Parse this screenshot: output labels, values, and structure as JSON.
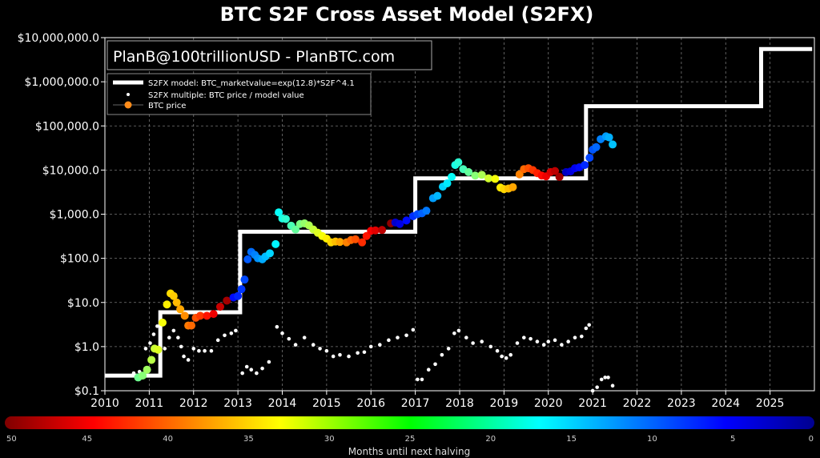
{
  "chart_data": {
    "type": "scatter",
    "title": "BTC S2F Cross Asset Model (S2FX)",
    "annotation": "PlanB@100trillionUSD  -  PlanBTC.com",
    "y_scale": "log",
    "ylim": [
      0.1,
      10000000
    ],
    "xlim": [
      2010,
      2026
    ],
    "grid": true,
    "legend_position": "top-left",
    "y_tick_labels": [
      "$0.1",
      "$1.0",
      "$10.0",
      "$100.0",
      "$1,000.0",
      "$10,000.0",
      "$100,000.0",
      "$1,000,000.0",
      "$10,000,000.0"
    ],
    "x_tick_labels": [
      "2010",
      "2011",
      "2012",
      "2013",
      "2014",
      "2015",
      "2016",
      "2017",
      "2018",
      "2019",
      "2020",
      "2021",
      "2022",
      "2023",
      "2024",
      "2025"
    ],
    "legend": [
      "S2FX model: BTC_marketvalue=exp(12.8)*S2F^4.1",
      "S2FX multiple: BTC price / model value",
      "BTC price"
    ],
    "colorbar": {
      "label": "Months until next halving",
      "ticks": [
        "50",
        "45",
        "40",
        "35",
        "30",
        "25",
        "20",
        "15",
        "10",
        "5",
        "0"
      ]
    },
    "series": [
      {
        "name": "S2FX model: BTC_marketvalue=exp(12.8)*S2F^4.1",
        "style": "step",
        "color": "#ffffff",
        "points": [
          [
            2010.0,
            0.22
          ],
          [
            2011.25,
            0.22
          ],
          [
            2011.25,
            6.0
          ],
          [
            2013.05,
            6.0
          ],
          [
            2013.05,
            400
          ],
          [
            2017.0,
            400
          ],
          [
            2017.0,
            6500
          ],
          [
            2020.85,
            6500
          ],
          [
            2020.85,
            280000
          ],
          [
            2024.8,
            280000
          ],
          [
            2024.8,
            5500000
          ],
          [
            2025.95,
            5500000
          ]
        ]
      },
      {
        "name": "BTC price",
        "style": "points",
        "points": [
          [
            2010.75,
            0.2
          ],
          [
            2010.85,
            0.22
          ],
          [
            2010.95,
            0.3
          ],
          [
            2011.05,
            0.5
          ],
          [
            2011.12,
            0.9
          ],
          [
            2011.2,
            0.85
          ],
          [
            2011.3,
            3.5
          ],
          [
            2011.4,
            9
          ],
          [
            2011.48,
            16
          ],
          [
            2011.55,
            14
          ],
          [
            2011.62,
            10
          ],
          [
            2011.7,
            7
          ],
          [
            2011.8,
            5
          ],
          [
            2011.88,
            3
          ],
          [
            2011.95,
            3
          ],
          [
            2012.05,
            4.5
          ],
          [
            2012.15,
            5
          ],
          [
            2012.3,
            5
          ],
          [
            2012.45,
            5.5
          ],
          [
            2012.6,
            8
          ],
          [
            2012.75,
            11
          ],
          [
            2012.9,
            13
          ],
          [
            2013.0,
            14
          ],
          [
            2013.08,
            20
          ],
          [
            2013.15,
            33
          ],
          [
            2013.22,
            95
          ],
          [
            2013.3,
            140
          ],
          [
            2013.38,
            120
          ],
          [
            2013.45,
            100
          ],
          [
            2013.55,
            95
          ],
          [
            2013.62,
            110
          ],
          [
            2013.72,
            130
          ],
          [
            2013.85,
            210
          ],
          [
            2013.92,
            1100
          ],
          [
            2014.0,
            800
          ],
          [
            2014.08,
            780
          ],
          [
            2014.2,
            550
          ],
          [
            2014.3,
            450
          ],
          [
            2014.4,
            600
          ],
          [
            2014.5,
            620
          ],
          [
            2014.6,
            560
          ],
          [
            2014.7,
            450
          ],
          [
            2014.8,
            380
          ],
          [
            2014.9,
            320
          ],
          [
            2015.0,
            280
          ],
          [
            2015.1,
            230
          ],
          [
            2015.2,
            240
          ],
          [
            2015.3,
            235
          ],
          [
            2015.45,
            230
          ],
          [
            2015.55,
            260
          ],
          [
            2015.65,
            270
          ],
          [
            2015.8,
            230
          ],
          [
            2015.9,
            320
          ],
          [
            2016.0,
            420
          ],
          [
            2016.1,
            430
          ],
          [
            2016.25,
            440
          ],
          [
            2016.45,
            620
          ],
          [
            2016.55,
            650
          ],
          [
            2016.65,
            600
          ],
          [
            2016.8,
            720
          ],
          [
            2016.95,
            900
          ],
          [
            2017.05,
            1000
          ],
          [
            2017.15,
            1050
          ],
          [
            2017.25,
            1200
          ],
          [
            2017.4,
            2300
          ],
          [
            2017.5,
            2600
          ],
          [
            2017.62,
            4200
          ],
          [
            2017.72,
            5000
          ],
          [
            2017.82,
            7000
          ],
          [
            2017.9,
            13000
          ],
          [
            2017.97,
            15000
          ],
          [
            2018.08,
            10500
          ],
          [
            2018.2,
            9000
          ],
          [
            2018.35,
            7500
          ],
          [
            2018.5,
            7800
          ],
          [
            2018.65,
            6500
          ],
          [
            2018.8,
            6300
          ],
          [
            2018.92,
            4000
          ],
          [
            2019.0,
            3700
          ],
          [
            2019.1,
            3800
          ],
          [
            2019.2,
            4100
          ],
          [
            2019.35,
            8000
          ],
          [
            2019.45,
            10500
          ],
          [
            2019.55,
            11000
          ],
          [
            2019.65,
            10000
          ],
          [
            2019.75,
            8500
          ],
          [
            2019.85,
            7500
          ],
          [
            2019.95,
            7200
          ],
          [
            2020.05,
            9000
          ],
          [
            2020.15,
            9500
          ],
          [
            2020.25,
            7000
          ],
          [
            2020.4,
            9000
          ],
          [
            2020.5,
            9300
          ],
          [
            2020.6,
            11000
          ],
          [
            2020.7,
            11500
          ],
          [
            2020.82,
            13000
          ],
          [
            2020.93,
            19000
          ],
          [
            2021.0,
            29000
          ],
          [
            2021.08,
            33000
          ],
          [
            2021.18,
            50000
          ],
          [
            2021.3,
            58000
          ],
          [
            2021.37,
            55000
          ],
          [
            2021.45,
            38000
          ]
        ]
      },
      {
        "name": "S2FX multiple: BTC price / model value",
        "style": "points",
        "color": "#ffffff",
        "points": [
          [
            2010.65,
            0.25
          ],
          [
            2010.78,
            0.27
          ],
          [
            2010.92,
            0.9
          ],
          [
            2011.02,
            1.2
          ],
          [
            2011.1,
            1.9
          ],
          [
            2011.18,
            2.9
          ],
          [
            2011.35,
            0.9
          ],
          [
            2011.45,
            1.6
          ],
          [
            2011.55,
            2.3
          ],
          [
            2011.65,
            1.6
          ],
          [
            2011.72,
            1.0
          ],
          [
            2011.78,
            0.6
          ],
          [
            2011.88,
            0.5
          ],
          [
            2012.0,
            0.9
          ],
          [
            2012.12,
            0.8
          ],
          [
            2012.25,
            0.8
          ],
          [
            2012.4,
            0.8
          ],
          [
            2012.55,
            1.4
          ],
          [
            2012.7,
            1.8
          ],
          [
            2012.85,
            2.0
          ],
          [
            2012.95,
            2.3
          ],
          [
            2013.1,
            0.25
          ],
          [
            2013.2,
            0.35
          ],
          [
            2013.3,
            0.3
          ],
          [
            2013.42,
            0.25
          ],
          [
            2013.55,
            0.32
          ],
          [
            2013.7,
            0.45
          ],
          [
            2013.88,
            2.8
          ],
          [
            2014.0,
            2.0
          ],
          [
            2014.15,
            1.5
          ],
          [
            2014.3,
            1.1
          ],
          [
            2014.5,
            1.6
          ],
          [
            2014.7,
            1.1
          ],
          [
            2014.85,
            0.9
          ],
          [
            2015.0,
            0.8
          ],
          [
            2015.15,
            0.6
          ],
          [
            2015.3,
            0.65
          ],
          [
            2015.5,
            0.6
          ],
          [
            2015.7,
            0.72
          ],
          [
            2015.85,
            0.75
          ],
          [
            2016.0,
            1.0
          ],
          [
            2016.2,
            1.1
          ],
          [
            2016.4,
            1.4
          ],
          [
            2016.6,
            1.6
          ],
          [
            2016.8,
            1.8
          ],
          [
            2016.95,
            2.4
          ],
          [
            2017.05,
            0.18
          ],
          [
            2017.15,
            0.18
          ],
          [
            2017.3,
            0.3
          ],
          [
            2017.45,
            0.4
          ],
          [
            2017.6,
            0.65
          ],
          [
            2017.75,
            0.9
          ],
          [
            2017.88,
            2.0
          ],
          [
            2017.98,
            2.3
          ],
          [
            2018.15,
            1.6
          ],
          [
            2018.3,
            1.2
          ],
          [
            2018.5,
            1.3
          ],
          [
            2018.7,
            1.0
          ],
          [
            2018.85,
            0.8
          ],
          [
            2018.95,
            0.6
          ],
          [
            2019.05,
            0.55
          ],
          [
            2019.15,
            0.65
          ],
          [
            2019.3,
            1.2
          ],
          [
            2019.45,
            1.6
          ],
          [
            2019.6,
            1.5
          ],
          [
            2019.75,
            1.3
          ],
          [
            2019.9,
            1.1
          ],
          [
            2020.0,
            1.3
          ],
          [
            2020.15,
            1.4
          ],
          [
            2020.3,
            1.1
          ],
          [
            2020.45,
            1.3
          ],
          [
            2020.6,
            1.6
          ],
          [
            2020.75,
            1.7
          ],
          [
            2020.85,
            2.6
          ],
          [
            2020.92,
            3.1
          ],
          [
            2021.0,
            0.1
          ],
          [
            2021.1,
            0.12
          ],
          [
            2021.2,
            0.18
          ],
          [
            2021.28,
            0.2
          ],
          [
            2021.35,
            0.2
          ],
          [
            2021.45,
            0.13
          ]
        ]
      }
    ]
  }
}
